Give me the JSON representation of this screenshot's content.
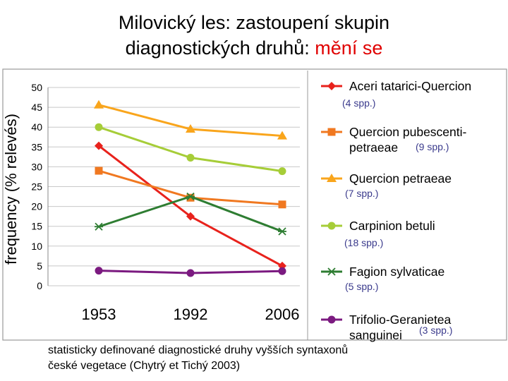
{
  "title": {
    "line1": "Milovický les: zastoupení skupin",
    "line2_main": "diagnostických druhů: ",
    "line2_highlight": "mění se",
    "highlight_color": "#e00000"
  },
  "caption": {
    "line1": "statisticky definované diagnostické druhy vyšších syntaxonů",
    "line2": "české vegetace (Chytrý et Tichý 2003)"
  },
  "chart_data": {
    "type": "line",
    "title": "",
    "xlabel": "",
    "ylabel": "frequency (% relevés)",
    "ylim": [
      0,
      50
    ],
    "yticks": [
      "0",
      "5",
      "10",
      "15",
      "20",
      "25",
      "30",
      "35",
      "40",
      "45",
      "50"
    ],
    "categories": [
      "1953",
      "1992",
      "2006"
    ],
    "grid": true,
    "legend_position": "right",
    "series": [
      {
        "name": "Aceri tatarici-Quercion",
        "name_lines": [
          "Aceri tatarici-Quercion"
        ],
        "count": "(4 spp.)",
        "color": "#e8221c",
        "marker": "diamond",
        "values": [
          35.3,
          17.5,
          5.0
        ]
      },
      {
        "name": "Quercion pubescenti-petraeae",
        "name_lines": [
          "Quercion pubescenti-",
          "petraeae"
        ],
        "count": "(9 spp.)",
        "color": "#f07820",
        "marker": "square",
        "values": [
          29.0,
          22.2,
          20.5
        ]
      },
      {
        "name": "Quercion petraeae",
        "name_lines": [
          "Quercion petraeae"
        ],
        "count": "(7 spp.)",
        "color": "#f9a51c",
        "marker": "triangle",
        "values": [
          45.6,
          39.5,
          37.8
        ]
      },
      {
        "name": "Carpinion betuli",
        "name_lines": [
          "Carpinion betuli"
        ],
        "count": "(18 spp.)",
        "color": "#a6cd38",
        "marker": "circle",
        "values": [
          40.0,
          32.3,
          28.9
        ]
      },
      {
        "name": "Fagion sylvaticae",
        "name_lines": [
          "Fagion sylvaticae"
        ],
        "count": "(5 spp.)",
        "color": "#2e7d32",
        "marker": "star",
        "values": [
          14.9,
          22.5,
          13.7
        ]
      },
      {
        "name": "Trifolio-Geranietea sanguinei",
        "name_lines": [
          "Trifolio-Geranietea",
          "sanguinei"
        ],
        "count": "(3 spp.)",
        "color": "#7b1a80",
        "marker": "circle",
        "values": [
          3.8,
          3.2,
          3.7
        ]
      }
    ]
  }
}
